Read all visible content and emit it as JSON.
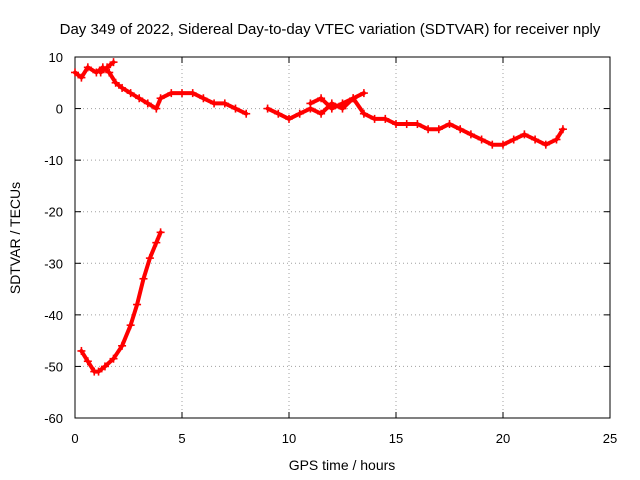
{
  "chart_data": {
    "type": "scatter",
    "title": "Day 349 of 2022, Sidereal Day-to-day VTEC variation (SDTVAR) for receiver nply",
    "xlabel": "GPS time / hours",
    "ylabel": "SDTVAR / TECUs",
    "xlim": [
      0,
      25
    ],
    "ylim": [
      -60,
      10
    ],
    "xticks": [
      0,
      5,
      10,
      15,
      20,
      25
    ],
    "yticks": [
      -60,
      -50,
      -40,
      -30,
      -20,
      -10,
      0,
      10
    ],
    "grid": true,
    "color": "#ff0000",
    "marker": "plus",
    "series": [
      {
        "name": "track-1",
        "x": [
          0,
          0.3,
          0.6,
          1.0,
          1.3,
          1.6,
          1.9,
          2.2,
          2.6,
          3.0,
          3.4,
          3.8,
          4.0,
          4.5,
          5.0,
          5.5,
          6.0,
          6.5,
          7.0,
          7.5,
          8.0
        ],
        "y": [
          7,
          6,
          8,
          7,
          8,
          7,
          5,
          4,
          3,
          2,
          1,
          0,
          2,
          3,
          3,
          3,
          2,
          1,
          1,
          0,
          -1
        ]
      },
      {
        "name": "track-1b",
        "x": [
          1.2,
          1.5,
          1.8
        ],
        "y": [
          7,
          8,
          9
        ]
      },
      {
        "name": "track-2",
        "x": [
          9.0,
          9.5,
          10.0,
          10.5,
          11.0,
          11.5,
          12.0,
          12.5,
          13.0,
          13.5,
          14.0,
          14.5,
          15.0,
          15.5,
          16.0,
          16.5,
          17.0,
          17.5,
          18.0,
          18.5,
          19.0,
          19.5,
          20.0,
          20.5,
          21.0,
          21.5,
          22.0,
          22.5,
          22.8
        ],
        "y": [
          0,
          -1,
          -2,
          -1,
          0,
          -1,
          1,
          0,
          2,
          -1,
          -2,
          -2,
          -3,
          -3,
          -3,
          -4,
          -4,
          -3,
          -4,
          -5,
          -6,
          -7,
          -7,
          -6,
          -5,
          -6,
          -7,
          -6,
          -4
        ]
      },
      {
        "name": "track-2b",
        "x": [
          11.0,
          11.5,
          12.0,
          12.5,
          13.0,
          13.5
        ],
        "y": [
          1,
          2,
          0,
          1,
          2,
          3
        ]
      },
      {
        "name": "track-3",
        "x": [
          0.3,
          0.6,
          0.9,
          1.1,
          1.4,
          1.8,
          2.2,
          2.6,
          2.9,
          3.2,
          3.5,
          3.8,
          4.0
        ],
        "y": [
          -47,
          -49,
          -51,
          -51,
          -50,
          -48.5,
          -46,
          -42,
          -38,
          -33,
          -29,
          -26,
          -24
        ]
      }
    ]
  }
}
